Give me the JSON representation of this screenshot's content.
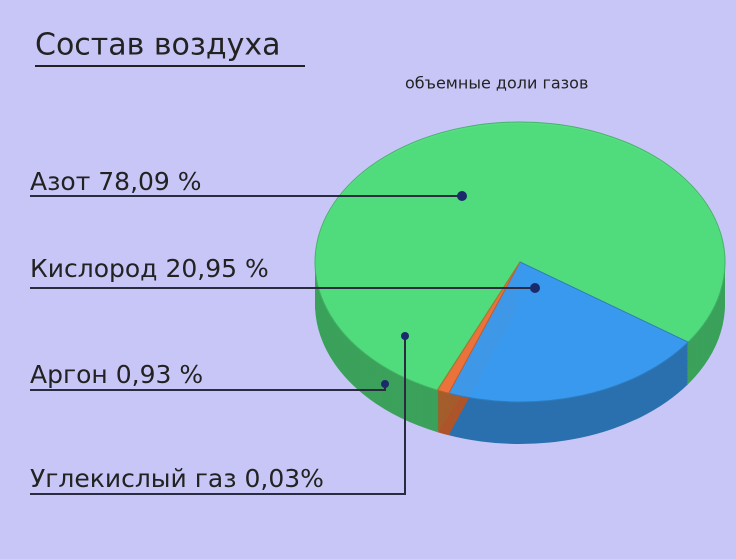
{
  "chart_data": {
    "type": "pie",
    "title": "Состав воздуха",
    "subtitle": "объемные доли газов",
    "categories": [
      "Азот",
      "Кислород",
      "Аргон",
      "Углекислый газ"
    ],
    "values": [
      78.09,
      20.95,
      0.93,
      0.03
    ],
    "value_labels": [
      "78,09 %",
      "20,95 %",
      "0,93 %",
      "0,03%"
    ],
    "colors": [
      "#52e07e",
      "#3a9cf2",
      "#f0743c",
      "#c8a040"
    ]
  }
}
